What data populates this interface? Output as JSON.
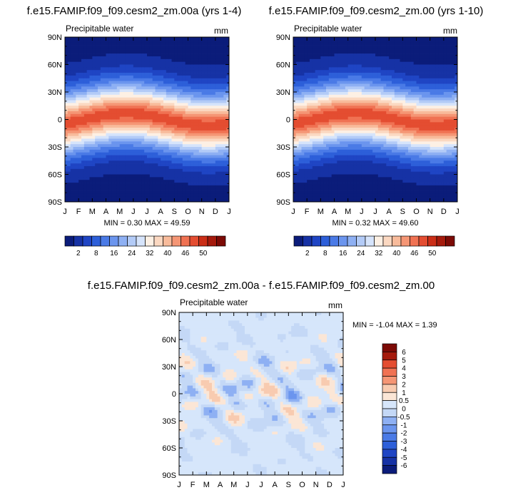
{
  "palette": {
    "full": [
      "#0b1c7a",
      "#1632a5",
      "#1f45c4",
      "#2d5fd9",
      "#4a7ae6",
      "#6b95ee",
      "#8eb0f3",
      "#b3cbf7",
      "#d6e4fb",
      "#fdf0e4",
      "#fbd8c1",
      "#f8bb9b",
      "#f59675",
      "#f07253",
      "#e44d31",
      "#cb2e17",
      "#a51a0c",
      "#7c0a05"
    ],
    "diff": [
      "#0b1c7a",
      "#1632a5",
      "#1f45c4",
      "#2d5fd9",
      "#4a7ae6",
      "#6b95ee",
      "#8eb0f3",
      "#b3cbf7",
      "#d6e4fb",
      "#fdf0e4",
      "#fbd8c1",
      "#f8bb9b",
      "#f59675",
      "#f07253",
      "#e44d31",
      "#cb2e17",
      "#a51a0c",
      "#7c0a05"
    ]
  },
  "chart_data": [
    {
      "type": "heatmap",
      "title": "f.e15.FAMIP.f09_f09.cesm2_zm.00a (yrs 1-4)",
      "subtitle": "Precipitable water",
      "units": "mm",
      "x": [
        "J",
        "F",
        "M",
        "A",
        "M",
        "J",
        "J",
        "A",
        "S",
        "O",
        "N",
        "D",
        "J"
      ],
      "y_ticks": [
        "90N",
        "60N",
        "30N",
        "0",
        "30S",
        "60S",
        "90S"
      ],
      "ylim": [
        -90,
        90
      ],
      "min_max": "MIN =   0.30 MAX =  49.59",
      "min": 0.3,
      "max": 49.59,
      "colorbar_ticks": [
        "2",
        "8",
        "16",
        "24",
        "32",
        "40",
        "46",
        "50"
      ]
    },
    {
      "type": "heatmap",
      "title": "f.e15.FAMIP.f09_f09.cesm2_zm.00 (yrs 1-10)",
      "subtitle": "Precipitable water",
      "units": "mm",
      "x": [
        "J",
        "F",
        "M",
        "A",
        "M",
        "J",
        "J",
        "A",
        "S",
        "O",
        "N",
        "D",
        "J"
      ],
      "y_ticks": [
        "90N",
        "60N",
        "30N",
        "0",
        "30S",
        "60S",
        "90S"
      ],
      "ylim": [
        -90,
        90
      ],
      "min_max": "MIN =   0.32 MAX =  49.60",
      "min": 0.32,
      "max": 49.6,
      "colorbar_ticks": [
        "2",
        "8",
        "16",
        "24",
        "32",
        "40",
        "46",
        "50"
      ]
    },
    {
      "type": "heatmap",
      "title": "f.e15.FAMIP.f09_f09.cesm2_zm.00a - f.e15.FAMIP.f09_f09.cesm2_zm.00",
      "subtitle": "Precipitable water",
      "units": "mm",
      "x": [
        "J",
        "F",
        "M",
        "A",
        "M",
        "J",
        "J",
        "A",
        "S",
        "O",
        "N",
        "D",
        "J"
      ],
      "y_ticks": [
        "90N",
        "60N",
        "30N",
        "0",
        "30S",
        "60S",
        "90S"
      ],
      "ylim": [
        -90,
        90
      ],
      "min_max": "MIN =  -1.04 MAX =   1.39",
      "min": -1.04,
      "max": 1.39,
      "colorbar_ticks": [
        "6",
        "5",
        "4",
        "3",
        "2",
        "1",
        "0.5",
        "0",
        "-0.5",
        "-1",
        "-2",
        "-3",
        "-4",
        "-5",
        "-6"
      ]
    }
  ]
}
